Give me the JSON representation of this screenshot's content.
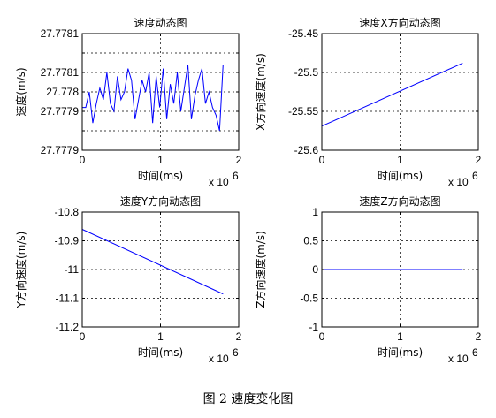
{
  "caption": "图 2  速度变化图",
  "chart_data": [
    {
      "type": "line",
      "title": "速度动态图",
      "xlabel": "时间(ms)",
      "ylabel": "速度(m/s)",
      "x_exponent_label": "x 10",
      "x_exponent": "6",
      "xlim": [
        0,
        2
      ],
      "ylim": [
        27.77785,
        27.77815
      ],
      "xticks": [
        0,
        1,
        2
      ],
      "xtick_labels": [
        "0",
        "1",
        "2"
      ],
      "yticks": [
        27.77785,
        27.7779,
        27.77795,
        27.778,
        27.77805,
        27.7781,
        27.77815
      ],
      "ytick_labels": [
        "27.7779",
        "",
        "27.7779",
        "27.778",
        "27.7781",
        "",
        "27.7781"
      ],
      "grid": true,
      "line_color": "#0000ff",
      "x": [
        0.0,
        0.045,
        0.09,
        0.135,
        0.18,
        0.225,
        0.27,
        0.315,
        0.36,
        0.405,
        0.45,
        0.495,
        0.54,
        0.585,
        0.63,
        0.675,
        0.72,
        0.765,
        0.81,
        0.855,
        0.9,
        0.945,
        0.99,
        1.035,
        1.08,
        1.125,
        1.17,
        1.215,
        1.26,
        1.305,
        1.35,
        1.395,
        1.44,
        1.485,
        1.53,
        1.575,
        1.62,
        1.665,
        1.71,
        1.755,
        1.8
      ],
      "y": [
        27.77796,
        27.77796,
        27.778,
        27.77792,
        27.77797,
        27.77801,
        27.77798,
        27.77805,
        27.77797,
        27.77795,
        27.77804,
        27.77798,
        27.778,
        27.77806,
        27.77803,
        27.77793,
        27.77798,
        27.77803,
        27.778,
        27.77805,
        27.77792,
        27.77804,
        27.77796,
        27.77806,
        27.77793,
        27.77802,
        27.77797,
        27.77805,
        27.77795,
        27.77801,
        27.77807,
        27.77793,
        27.77799,
        27.77803,
        27.77806,
        27.77797,
        27.778,
        27.77796,
        27.77794,
        27.7779,
        27.77807
      ]
    },
    {
      "type": "line",
      "title": "速度X方向动态图",
      "xlabel": "时间(ms)",
      "ylabel": "X方向速度(m/s)",
      "x_exponent_label": "x 10",
      "x_exponent": "6",
      "xlim": [
        0,
        2
      ],
      "ylim": [
        -25.6,
        -25.45
      ],
      "xticks": [
        0,
        1,
        2
      ],
      "xtick_labels": [
        "0",
        "1",
        "2"
      ],
      "yticks": [
        -25.6,
        -25.55,
        -25.5,
        -25.45
      ],
      "ytick_labels": [
        "-25.6",
        "-25.55",
        "-25.5",
        "-25.45"
      ],
      "grid": true,
      "line_color": "#0000ff",
      "x": [
        0,
        1.8
      ],
      "y": [
        -25.569,
        -25.488
      ]
    },
    {
      "type": "line",
      "title": "速度Y方向动态图",
      "xlabel": "时间(ms)",
      "ylabel": "Y方向速度(m/s)",
      "x_exponent_label": "x 10",
      "x_exponent": "6",
      "xlim": [
        0,
        2
      ],
      "ylim": [
        -11.2,
        -10.8
      ],
      "xticks": [
        0,
        1,
        2
      ],
      "xtick_labels": [
        "0",
        "1",
        "2"
      ],
      "yticks": [
        -11.2,
        -11.1,
        -11.0,
        -10.9,
        -10.8
      ],
      "ytick_labels": [
        "-11.2",
        "-11.1",
        "-11",
        "-10.9",
        "-10.8"
      ],
      "grid": true,
      "line_color": "#0000ff",
      "x": [
        0,
        1.8
      ],
      "y": [
        -10.86,
        -11.085
      ]
    },
    {
      "type": "line",
      "title": "速度Z方向动态图",
      "xlabel": "时间(ms)",
      "ylabel": "Z方向速度(m/s)",
      "x_exponent_label": "x 10",
      "x_exponent": "6",
      "xlim": [
        0,
        2
      ],
      "ylim": [
        -1,
        1
      ],
      "xticks": [
        0,
        1,
        2
      ],
      "xtick_labels": [
        "0",
        "1",
        "2"
      ],
      "yticks": [
        -1,
        -0.5,
        0,
        0.5,
        1
      ],
      "ytick_labels": [
        "-1",
        "-0.5",
        "0",
        "0.5",
        "1"
      ],
      "grid": true,
      "line_color": "#0000ff",
      "x": [
        0,
        1.8
      ],
      "y": [
        0,
        0
      ]
    }
  ]
}
